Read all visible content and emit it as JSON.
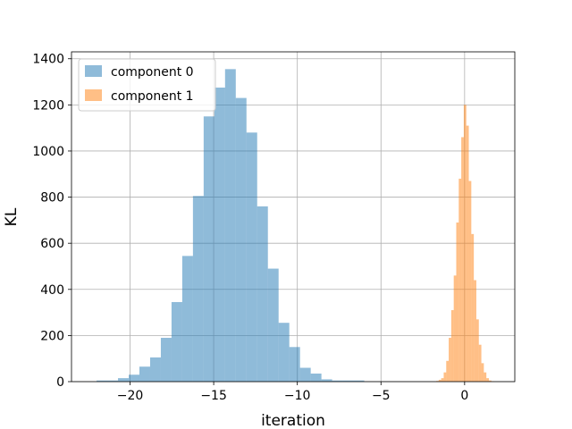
{
  "chart_data": {
    "type": "histogram",
    "xlabel": "iteration",
    "ylabel": "KL",
    "xlim": [
      -23.5,
      3.0
    ],
    "ylim": [
      0,
      1430
    ],
    "xticks": [
      -20,
      -15,
      -10,
      -5,
      0
    ],
    "xtick_labels": [
      "−20",
      "−15",
      "−10",
      "−5",
      "0"
    ],
    "yticks": [
      0,
      200,
      400,
      600,
      800,
      1000,
      1200,
      1400
    ],
    "ytick_labels": [
      "0",
      "200",
      "400",
      "600",
      "800",
      "1000",
      "1200",
      "1400"
    ],
    "grid": true,
    "legend_position": "upper left",
    "series": [
      {
        "name": "component 0",
        "color": "#1f77b4",
        "opacity": 0.5,
        "bin_edges": [
          -22.0,
          -21.36,
          -20.72,
          -20.08,
          -19.44,
          -18.8,
          -18.16,
          -17.52,
          -16.88,
          -16.24,
          -15.6,
          -14.96,
          -14.32,
          -13.68,
          -13.04,
          -12.4,
          -11.76,
          -11.12,
          -10.48,
          -9.84,
          -9.2,
          -8.56,
          -7.92,
          -7.28,
          -6.64,
          -6.0
        ],
        "counts": [
          5,
          5,
          15,
          30,
          65,
          105,
          190,
          345,
          545,
          805,
          1150,
          1275,
          1355,
          1230,
          1080,
          760,
          490,
          255,
          150,
          60,
          35,
          10,
          5,
          5,
          5
        ]
      },
      {
        "name": "component 1",
        "color": "#ff7f0e",
        "opacity": 0.5,
        "bin_edges": [
          -1.7,
          -1.55,
          -1.4,
          -1.25,
          -1.1,
          -0.95,
          -0.8,
          -0.65,
          -0.5,
          -0.35,
          -0.2,
          -0.05,
          0.1,
          0.25,
          0.4,
          0.55,
          0.7,
          0.85,
          1.0,
          1.15,
          1.3,
          1.45,
          1.6,
          1.75
        ],
        "counts": [
          3,
          8,
          15,
          40,
          90,
          190,
          310,
          460,
          690,
          880,
          1060,
          1200,
          1110,
          870,
          640,
          440,
          270,
          160,
          80,
          40,
          15,
          5,
          2
        ]
      }
    ]
  }
}
